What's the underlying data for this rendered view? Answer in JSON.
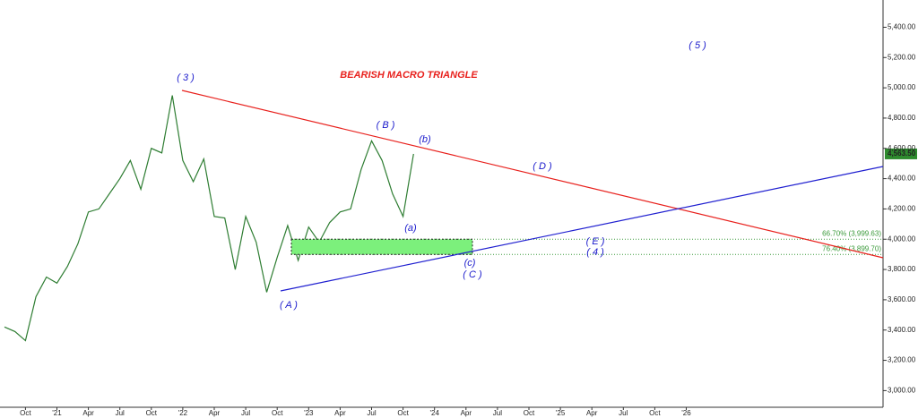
{
  "chart_data": {
    "type": "line",
    "title": "BEARISH MACRO TRIANGLE",
    "categories": [
      null,
      null,
      "Oct",
      null,
      null,
      "'21",
      null,
      null,
      "Apr",
      null,
      null,
      "Jul",
      null,
      null,
      "Oct",
      null,
      null,
      "'22",
      null,
      null,
      "Apr",
      null,
      null,
      "Jul",
      null,
      null,
      "Oct",
      null,
      null,
      "'23",
      null,
      null,
      "Apr",
      null,
      null,
      "Jul",
      null,
      null,
      "Oct",
      null,
      null,
      "'24",
      null,
      null,
      "Apr",
      null,
      null,
      "Jul",
      null,
      null,
      "Oct",
      null,
      null,
      "'25",
      null,
      null,
      "Apr",
      null,
      null,
      "Jul",
      null,
      null,
      "Oct",
      null,
      null,
      "'26",
      null,
      null,
      null,
      null,
      null,
      null,
      null,
      null,
      null,
      null,
      null,
      null,
      null,
      null,
      null,
      null,
      null,
      null
    ],
    "values": [
      3420,
      3390,
      3330,
      3620,
      3750,
      3710,
      3820,
      3970,
      4180,
      4200,
      4300,
      4400,
      4520,
      4330,
      4600,
      4570,
      4950,
      4520,
      4380,
      4530,
      4150,
      4140,
      3800,
      4150,
      3980,
      3650,
      3880,
      4090,
      3860,
      4080,
      3980,
      4110,
      4180,
      4200,
      4460,
      4650,
      4520,
      4300,
      4150,
      4563.5,
      null,
      null,
      null,
      null,
      null,
      null,
      null,
      null,
      null,
      null,
      null,
      null,
      null,
      null,
      null,
      null,
      null,
      null,
      null,
      null,
      null,
      null,
      null,
      null,
      null,
      null,
      null,
      null,
      null,
      null,
      null,
      null,
      null,
      null,
      null,
      null,
      null,
      null,
      null,
      null,
      null,
      null,
      null,
      null
    ],
    "color": "#2e7d32",
    "ylim": [
      2890,
      5580
    ],
    "yticks": [
      {
        "value": 3000,
        "label": "3,000.00"
      },
      {
        "value": 3200,
        "label": "3,200.00"
      },
      {
        "value": 3400,
        "label": "3,400.00"
      },
      {
        "value": 3600,
        "label": "3,600.00"
      },
      {
        "value": 3800,
        "label": "3,800.00"
      },
      {
        "value": 4000,
        "label": "4,000.00"
      },
      {
        "value": 4200,
        "label": "4,200.00"
      },
      {
        "value": 4400,
        "label": "4,400.00"
      },
      {
        "value": 4600,
        "label": "4,600.00"
      },
      {
        "value": 4800,
        "label": "4,800.00"
      },
      {
        "value": 5000,
        "label": "5,000.00"
      },
      {
        "value": 5200,
        "label": "5,200.00"
      },
      {
        "value": 5400,
        "label": "5,400.00"
      }
    ],
    "last_price": {
      "value": 4563.5,
      "label": "4,563.50"
    },
    "fib_levels": [
      {
        "value": 3999.63,
        "label": "66.70% (3,999.63)"
      },
      {
        "value": 3899.7,
        "label": "76.40% (3,899.70)"
      }
    ],
    "wave_labels": [
      "( 3 )",
      "( B )",
      "(b)",
      "( D )",
      "(a)",
      "( E )",
      "( 4 )",
      "(c)",
      "( C )",
      "( A )",
      "( 5 )"
    ]
  }
}
